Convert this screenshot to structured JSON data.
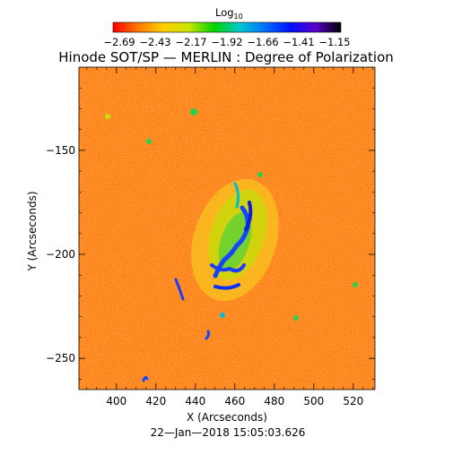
{
  "colorbar": {
    "title": "Log",
    "title_sub": "10",
    "labels": [
      "−2.69",
      "−2.43",
      "−2.17",
      "−1.92",
      "−1.66",
      "−1.41",
      "−1.15"
    ],
    "stops": [
      "#ff0000",
      "#ff7a00",
      "#ffd000",
      "#c8e600",
      "#00d400",
      "#00c8d2",
      "#0070ff",
      "#0010ff",
      "#5a00c8",
      "#000000"
    ]
  },
  "title": "Hinode SOT/SP — MERLIN : Degree of Polarization",
  "x_axis": {
    "label": "X (Arcseconds)",
    "range": [
      381,
      531
    ],
    "ticks": [
      400,
      420,
      440,
      460,
      480,
      500,
      520
    ],
    "tick_labels": [
      "400",
      "420",
      "440",
      "460",
      "480",
      "500",
      "520"
    ]
  },
  "y_axis": {
    "label": "Y (Arcseconds)",
    "range": [
      -265,
      -110
    ],
    "ticks": [
      -150,
      -200,
      -250
    ],
    "tick_labels": [
      "−150",
      "−200",
      "−250"
    ]
  },
  "timestamp": "22—Jan—2018 15:05:03.626",
  "image_colors": {
    "background": "#ff7f1a",
    "speckle": "#ffcf1e",
    "field": "#ff8a1a"
  }
}
